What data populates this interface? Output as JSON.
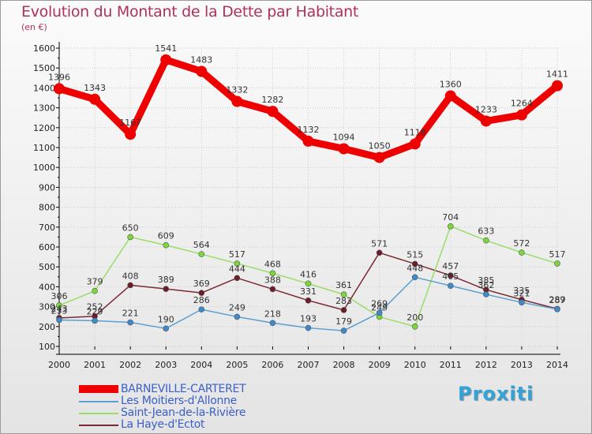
{
  "colors": {
    "title": "#b0305c",
    "axis": "#000000",
    "grid": "#cccccc"
  },
  "chart_data": {
    "type": "line",
    "title": "Evolution du Montant de la Dette par Habitant",
    "subtitle": "(en €)",
    "x": [
      "2000",
      "2001",
      "2002",
      "2003",
      "2004",
      "2005",
      "2006",
      "2007",
      "2008",
      "2009",
      "2010",
      "2011",
      "2012",
      "2013",
      "2014"
    ],
    "ylim": [
      100,
      1600
    ],
    "yticks": [
      100,
      200,
      300,
      400,
      500,
      600,
      700,
      800,
      900,
      1000,
      1100,
      1200,
      1300,
      1400,
      1500,
      1600
    ],
    "grid": true,
    "legend_position": "bottom-left",
    "series": [
      {
        "name": "BARNEVILLE-CARTERET",
        "color": "#ee0000",
        "style": "thick",
        "values": [
          1396,
          1343,
          1167,
          1541,
          1483,
          1332,
          1282,
          1132,
          1094,
          1050,
          1118,
          1360,
          1233,
          1264,
          1411
        ],
        "labels": [
          "1396",
          "1343",
          "1167",
          "1541",
          "1483",
          "1332",
          "1282",
          "1132",
          "1094",
          "1050",
          "1118",
          "1360",
          "1233",
          "1264",
          "1411"
        ]
      },
      {
        "name": "Les Moitiers-d'Allonne",
        "color": "#5c9fd0",
        "marker_color": "#3f8acb",
        "values": [
          233,
          229,
          221,
          190,
          286,
          249,
          218,
          193,
          179,
          269,
          448,
          405,
          362,
          321,
          287
        ],
        "labels": [
          "233",
          "229",
          "221",
          "190",
          "286",
          "249",
          "218",
          "193",
          "179",
          "269",
          "448",
          "405",
          "362",
          "321",
          "287"
        ]
      },
      {
        "name": "Saint-Jean-de-la-Rivière",
        "color": "#99dd66",
        "marker_color": "#7dd63a",
        "values": [
          306,
          379,
          650,
          609,
          564,
          517,
          468,
          416,
          361,
          249,
          200,
          704,
          633,
          572,
          517
        ],
        "labels": [
          "306",
          "379",
          "650",
          "609",
          "564",
          "517",
          "468",
          "416",
          "361",
          "249",
          "200",
          "704",
          "633",
          "572",
          "517"
        ]
      },
      {
        "name": "La Haye-d'Ectot",
        "color": "#7a2a34",
        "marker_color": "#6b1d28",
        "values": [
          243,
          252,
          408,
          389,
          369,
          444,
          388,
          331,
          283,
          571,
          515,
          457,
          385,
          335,
          289
        ],
        "labels": [
          "243",
          "252",
          "408",
          "389",
          "369",
          "444",
          "388",
          "331",
          "283",
          "571",
          "515",
          "457",
          "385",
          "335",
          "289"
        ]
      }
    ]
  },
  "brand": {
    "text": "Proxiti"
  }
}
